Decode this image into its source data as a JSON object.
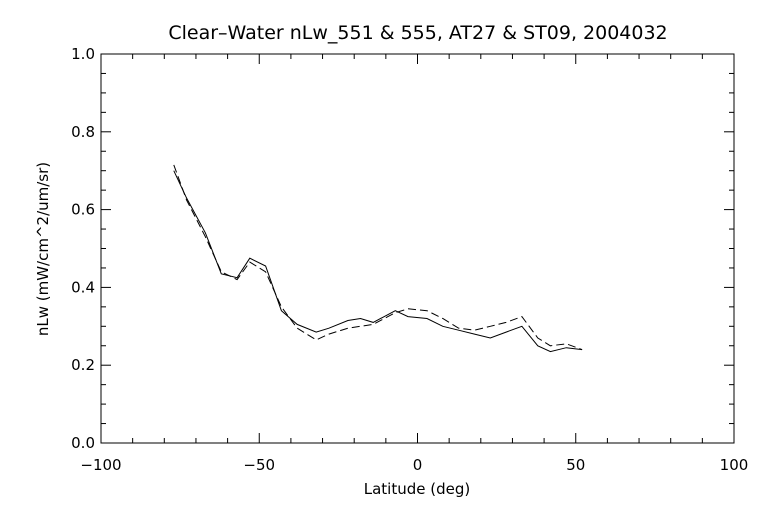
{
  "chart_data": {
    "type": "line",
    "title": "Clear–Water nLw_551 & 555, AT27 & ST09, 2004032",
    "xlabel": "Latitude (deg)",
    "ylabel": "nLw (mW/cm^2/um/sr)",
    "xlim": [
      -100,
      100
    ],
    "ylim": [
      0.0,
      1.0
    ],
    "xticks": [
      -100,
      -50,
      0,
      50,
      100
    ],
    "xtick_labels": [
      "−100",
      "−50",
      "0",
      "50",
      "100"
    ],
    "yticks": [
      0.0,
      0.2,
      0.4,
      0.6,
      0.8,
      1.0
    ],
    "ytick_labels": [
      "0.0",
      "0.2",
      "0.4",
      "0.6",
      "0.8",
      "1.0"
    ],
    "grid": false,
    "series": [
      {
        "style": "solid",
        "x": [
          -77,
          -73,
          -67,
          -62,
          -57,
          -53,
          -48,
          -43,
          -38,
          -32,
          -28,
          -22,
          -18,
          -14,
          -7,
          -3,
          3,
          8,
          13,
          18,
          23,
          28,
          33,
          38,
          42,
          47,
          52
        ],
        "y": [
          0.7,
          0.63,
          0.54,
          0.435,
          0.425,
          0.475,
          0.455,
          0.34,
          0.305,
          0.285,
          0.295,
          0.315,
          0.32,
          0.31,
          0.34,
          0.325,
          0.32,
          0.3,
          0.29,
          0.28,
          0.27,
          0.285,
          0.3,
          0.25,
          0.235,
          0.245,
          0.24
        ]
      },
      {
        "style": "dashed",
        "x": [
          -77,
          -73,
          -67,
          -62,
          -57,
          -53,
          -48,
          -43,
          -38,
          -32,
          -28,
          -22,
          -18,
          -14,
          -7,
          -3,
          3,
          8,
          13,
          18,
          23,
          28,
          33,
          38,
          42,
          47,
          52
        ],
        "y": [
          0.715,
          0.625,
          0.53,
          0.44,
          0.42,
          0.465,
          0.44,
          0.35,
          0.295,
          0.265,
          0.28,
          0.295,
          0.3,
          0.305,
          0.335,
          0.345,
          0.34,
          0.32,
          0.295,
          0.29,
          0.3,
          0.31,
          0.325,
          0.27,
          0.25,
          0.255,
          0.24
        ]
      }
    ]
  }
}
